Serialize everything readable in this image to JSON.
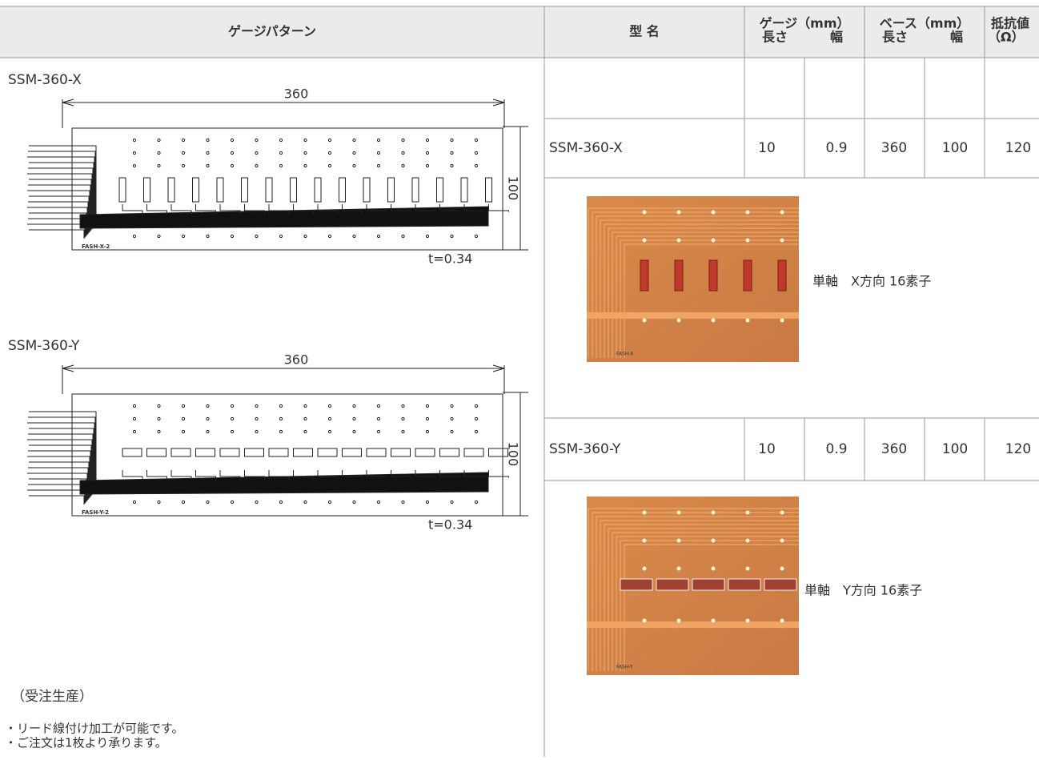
{
  "header": {
    "pattern": "ゲージパターン",
    "model": "型 名",
    "gauge": "ゲージ（mm）",
    "gauge_length": "長さ",
    "gauge_width": "幅",
    "base": "ベース（mm）",
    "base_length": "長さ",
    "base_width": "幅",
    "resistance": "抵抗値",
    "resistance_unit": "（Ω）"
  },
  "patterns": [
    {
      "name": "SSM-360-X",
      "length": 360,
      "width": 100,
      "thickness": "t=0.34",
      "code": "FASH-X-2"
    },
    {
      "name": "SSM-360-Y",
      "length": 360,
      "width": 100,
      "thickness": "t=0.34",
      "code": "FASH-Y-2"
    }
  ],
  "rows": [
    {
      "model": "SSM-360-X",
      "gauge_length": 10,
      "gauge_width": 0.9,
      "base_length": 360,
      "base_width": 100,
      "resistance": 120,
      "caption": "単軸　X方向 16素子",
      "photo_code": "FASH-X"
    },
    {
      "model": "SSM-360-Y",
      "gauge_length": 10,
      "gauge_width": 0.9,
      "base_length": 360,
      "base_width": 100,
      "resistance": 120,
      "caption": "単軸　Y方向 16素子",
      "photo_code": "FASH-Y"
    }
  ],
  "notes": {
    "order": "（受注生産）",
    "items": [
      "・リード線付け加工が可能です。",
      "・ご注文は1枚より承ります。"
    ]
  }
}
